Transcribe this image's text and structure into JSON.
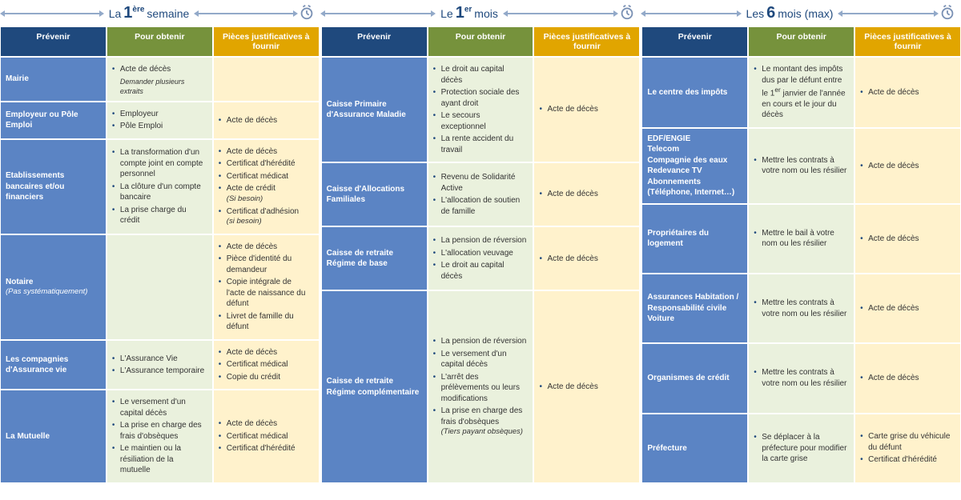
{
  "colors": {
    "header_blue": "#1f497d",
    "header_green": "#76923c",
    "header_gold": "#e1a500",
    "cell_blue": "#5b84c4",
    "cell_green": "#eaf1dd",
    "cell_gold": "#fff2cc",
    "arrow": "#92a9c9",
    "text_blue": "#1f497d"
  },
  "column_labels": {
    "prevenir": "Prévenir",
    "obtenir": "Pour obtenir",
    "pieces": "Pièces justificatives à fournir"
  },
  "periods": [
    {
      "id": "week",
      "title": {
        "prefix": "La",
        "num": "1",
        "sup": "ère",
        "suffix": "semaine"
      },
      "rows": [
        {
          "prevenir": {
            "text": "Mairie"
          },
          "obtenir": {
            "items": [
              "Acte de décès"
            ],
            "note": "Demander plusieurs extraits"
          },
          "pieces": {
            "items": []
          }
        },
        {
          "prevenir": {
            "text": "Employeur ou Pôle Emploi"
          },
          "obtenir": {
            "items": [
              "Employeur",
              "Pôle Emploi"
            ]
          },
          "pieces": {
            "items": [
              "Acte de décès"
            ]
          }
        },
        {
          "prevenir": {
            "text": "Etablissements bancaires et/ou financiers"
          },
          "obtenir": {
            "items": [
              "La transformation d'un compte joint en compte personnel",
              "La clôture d'un compte bancaire",
              "La prise charge du crédit"
            ]
          },
          "pieces": {
            "items": [
              "Acte de décès",
              "Certificat d'hérédité",
              "Certificat médicat",
              "Acte de crédit <em>(Si besoin)</em>",
              "Certificat d'adhésion <em>(si besoin)</em>"
            ]
          }
        },
        {
          "prevenir": {
            "text": "Notaire",
            "sub": "(Pas systématiquement)"
          },
          "obtenir": {
            "items": []
          },
          "pieces": {
            "items": [
              "Acte de décès",
              "Pièce d'identité du demandeur",
              "Copie intégrale de l'acte de naissance du défunt",
              "Livret de famille du défunt"
            ]
          }
        },
        {
          "prevenir": {
            "text": "Les compagnies d'Assurance vie"
          },
          "obtenir": {
            "items": [
              "L'Assurance Vie",
              "L'Assurance temporaire"
            ]
          },
          "pieces": {
            "items": [
              "Acte de décès",
              "Certificat médical",
              "Copie du crédit"
            ]
          }
        },
        {
          "prevenir": {
            "text": "La Mutuelle"
          },
          "obtenir": {
            "items": [
              "Le versement d'un capital décès",
              "La prise en charge des frais d'obsèques",
              "Le maintien ou la résiliation de la mutuelle"
            ]
          },
          "pieces": {
            "items": [
              "Acte de décès",
              "Certificat médical",
              "Certificat d'hérédité"
            ]
          }
        }
      ]
    },
    {
      "id": "month",
      "title": {
        "prefix": "Le",
        "num": "1",
        "sup": "er",
        "suffix": "mois"
      },
      "rows": [
        {
          "prevenir": {
            "text": "Caisse Primaire d'Assurance Maladie"
          },
          "obtenir": {
            "items": [
              "Le droit au capital décès",
              "Protection sociale des ayant droit",
              "Le secours exceptionnel",
              "La rente accident du travail"
            ]
          },
          "pieces": {
            "items": [
              "Acte de décès"
            ]
          }
        },
        {
          "prevenir": {
            "text": "Caisse d'Allocations Familiales"
          },
          "obtenir": {
            "items": [
              "Revenu de Solidarité Active",
              "L'allocation de soutien de famille"
            ]
          },
          "pieces": {
            "items": [
              "Acte de décès"
            ]
          }
        },
        {
          "prevenir": {
            "text": "Caisse de retraite Régime de base"
          },
          "obtenir": {
            "items": [
              "La pension de réversion",
              "L'allocation veuvage",
              "Le droit au capital décès"
            ]
          },
          "pieces": {
            "items": [
              "Acte de décès"
            ]
          }
        },
        {
          "span": 3,
          "prevenir": {
            "text": "Caisse de retraite Régime complémentaire"
          },
          "obtenir": {
            "items": [
              "La pension de réversion",
              "Le versement d'un capital décès",
              "L'arrêt des prélèvements ou leurs modifications",
              "La prise en charge des frais d'obsèques <em>(Tiers payant obsèques)</em>"
            ]
          },
          "pieces": {
            "items": [
              "Acte de décès"
            ]
          }
        }
      ]
    },
    {
      "id": "sixmonths",
      "title": {
        "prefix": "Les",
        "num": "6",
        "sup": "",
        "suffix": "mois (max)"
      },
      "rows": [
        {
          "prevenir": {
            "text": "Le centre des impôts"
          },
          "obtenir": {
            "items": [
              "Le montant des impôts dus par le défunt entre le 1<sup>er</sup> janvier de l'année en cours et le jour du décès"
            ]
          },
          "pieces": {
            "items": [
              "Acte de décès"
            ]
          }
        },
        {
          "prevenir": {
            "text": "EDF/ENGIE<br>Telecom<br>Compagnie des eaux<br>Redevance TV<br>Abonnements (Téléphone, Internet…)"
          },
          "obtenir": {
            "items": [
              "Mettre les contrats à votre nom ou les résilier"
            ]
          },
          "pieces": {
            "items": [
              "Acte de décès"
            ]
          }
        },
        {
          "prevenir": {
            "text": "Propriétaires du logement"
          },
          "obtenir": {
            "items": [
              "Mettre le bail à votre nom ou les résilier"
            ]
          },
          "pieces": {
            "items": [
              "Acte de décès"
            ]
          }
        },
        {
          "prevenir": {
            "text": "Assurances Habitation / Responsabilité civile Voiture"
          },
          "obtenir": {
            "items": [
              "Mettre les contrats à votre nom ou les résilier"
            ]
          },
          "pieces": {
            "items": [
              "Acte de décès"
            ]
          }
        },
        {
          "prevenir": {
            "text": "Organismes de crédit"
          },
          "obtenir": {
            "items": [
              "Mettre les contrats à votre nom ou les résilier"
            ]
          },
          "pieces": {
            "items": [
              "Acte de décès"
            ]
          }
        },
        {
          "prevenir": {
            "text": "Préfecture"
          },
          "obtenir": {
            "items": [
              "Se déplacer à la préfecture pour modifier la carte grise"
            ]
          },
          "pieces": {
            "items": [
              "Carte grise du véhicule du défunt",
              "Certificat d'hérédité"
            ]
          }
        }
      ]
    }
  ]
}
